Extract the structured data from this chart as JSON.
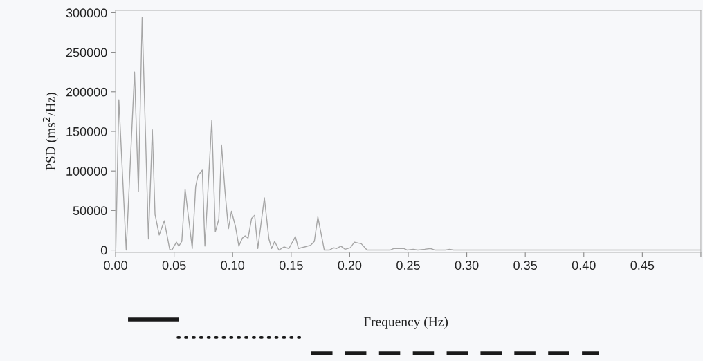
{
  "chart_data": {
    "type": "line",
    "xlabel": "Frequency (Hz)",
    "ylabel": "PSD (ms$^{2}$/Hz)",
    "x": [
      0.0002,
      0.0028,
      0.0091,
      0.0162,
      0.0195,
      0.0227,
      0.0281,
      0.0314,
      0.0337,
      0.0373,
      0.0416,
      0.0462,
      0.0481,
      0.052,
      0.054,
      0.0566,
      0.0594,
      0.0655,
      0.0684,
      0.0704,
      0.0741,
      0.0763,
      0.0822,
      0.0852,
      0.0882,
      0.0905,
      0.0935,
      0.0964,
      0.099,
      0.1024,
      0.1053,
      0.1083,
      0.1107,
      0.1132,
      0.1162,
      0.1188,
      0.1215,
      0.1271,
      0.131,
      0.1333,
      0.1359,
      0.1395,
      0.1438,
      0.1481,
      0.1536,
      0.1562,
      0.1615,
      0.1665,
      0.1698,
      0.1728,
      0.1783,
      0.1826,
      0.1862,
      0.1886,
      0.1925,
      0.1961,
      0.2006,
      0.204,
      0.2099,
      0.2148,
      0.2345,
      0.2375,
      0.2464,
      0.2493,
      0.2543,
      0.2582,
      0.2641,
      0.269,
      0.273,
      0.2818,
      0.2854,
      0.2888,
      0.5
    ],
    "series": [
      {
        "color": "#a6a6a6",
        "values": [
          3000,
          190000,
          0,
          225000,
          74000,
          294000,
          14000,
          152000,
          45000,
          19000,
          37000,
          1000,
          0,
          10000,
          5000,
          11000,
          77000,
          2000,
          80000,
          94000,
          101000,
          5000,
          164000,
          23000,
          39000,
          133000,
          74000,
          27000,
          49000,
          30000,
          5000,
          15000,
          18000,
          15000,
          40000,
          44000,
          2000,
          66000,
          14000,
          2000,
          11000,
          0,
          4000,
          2000,
          17000,
          2000,
          4000,
          6000,
          11000,
          42000,
          0,
          0,
          3000,
          2000,
          5000,
          1000,
          3000,
          10000,
          8000,
          0,
          0,
          2000,
          2000,
          0,
          1000,
          0,
          1000,
          2000,
          0,
          0,
          1000,
          0,
          0
        ]
      }
    ],
    "xlim": [
      0,
      0.5
    ],
    "ylim": [
      -3000,
      303000
    ],
    "xticks": [
      {
        "value": 0,
        "label": "0.00"
      },
      {
        "value": 0.05,
        "label": "0.05"
      },
      {
        "value": 0.1,
        "label": "0.10"
      },
      {
        "value": 0.15,
        "label": "0.15"
      },
      {
        "value": 0.2,
        "label": "0.20"
      },
      {
        "value": 0.25,
        "label": "0.25"
      },
      {
        "value": 0.3,
        "label": "0.30"
      },
      {
        "value": 0.35,
        "label": "0.35"
      },
      {
        "value": 0.4,
        "label": "0.40"
      },
      {
        "value": 0.45,
        "label": "0.45"
      },
      {
        "value": 0.5,
        "label": null
      }
    ],
    "yticks": [
      0,
      50000,
      100000,
      150000,
      200000,
      250000,
      300000
    ],
    "line_style": "solid",
    "marker": "none",
    "grid": false
  }
}
